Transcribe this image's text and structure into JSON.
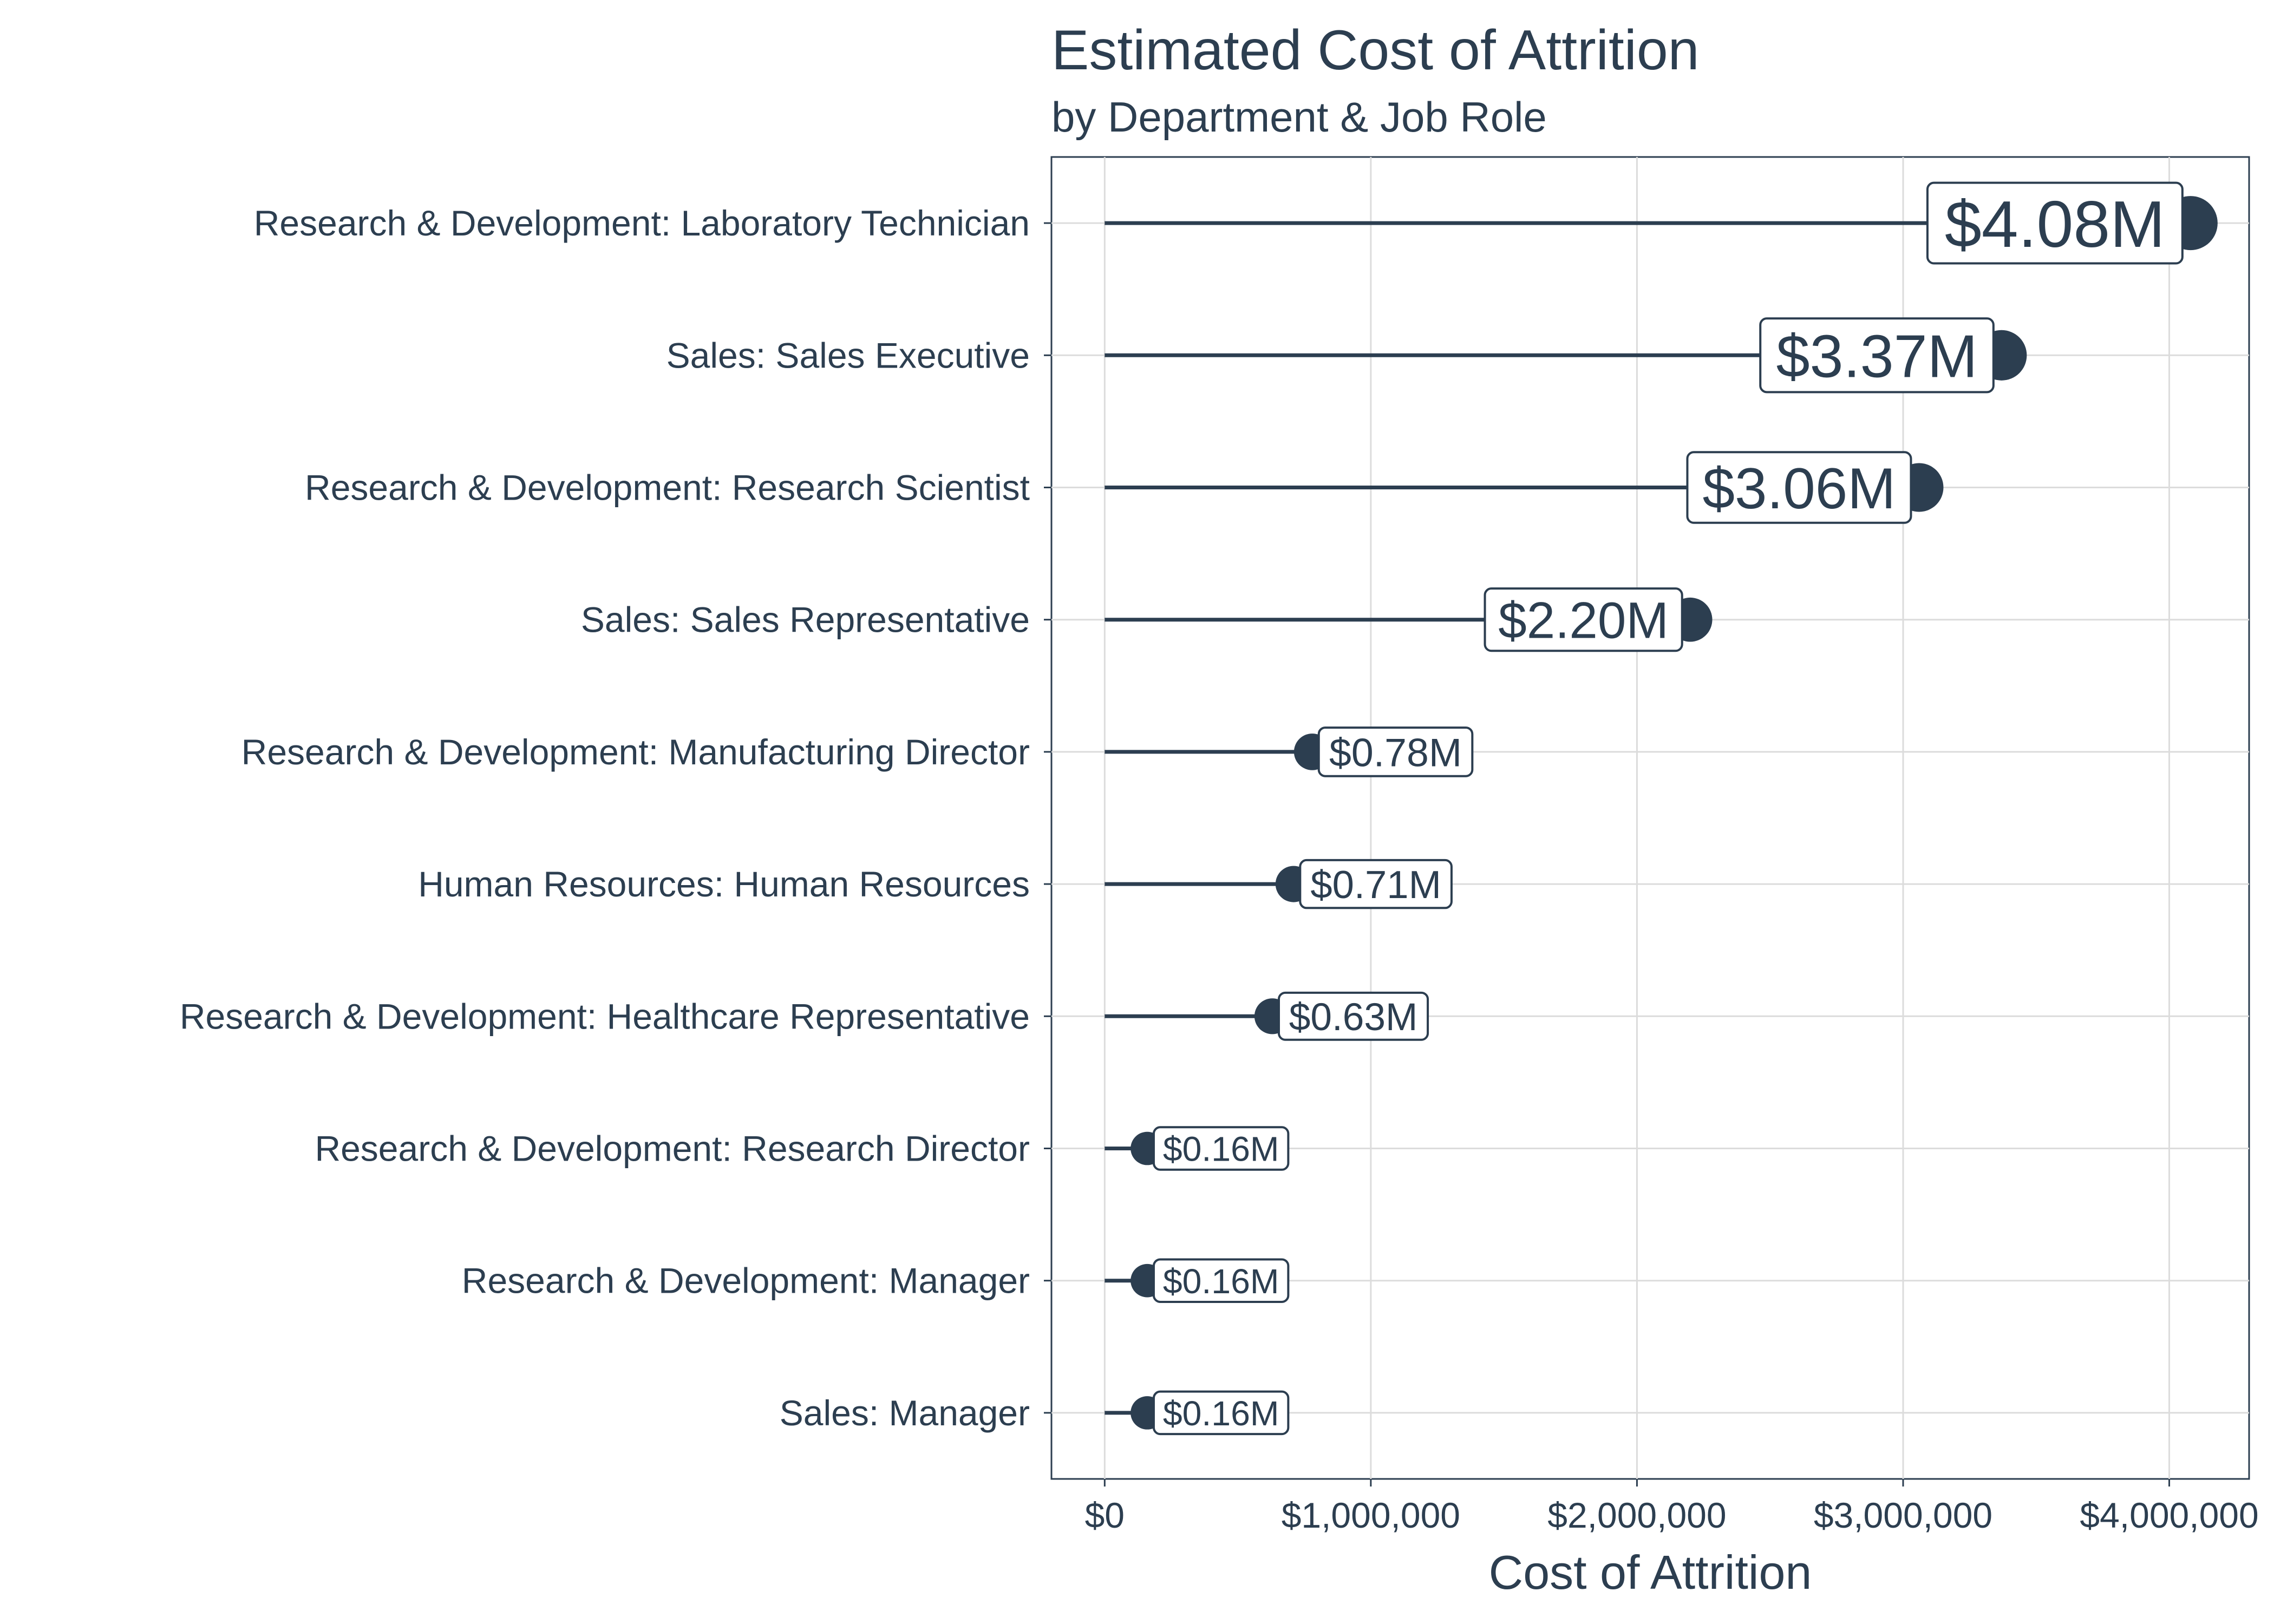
{
  "chart_data": {
    "type": "lollipop",
    "orientation": "horizontal",
    "title": "Estimated Cost of Attrition",
    "subtitle": "by Department & Job Role",
    "xlabel": "Cost of Attrition",
    "ylabel": "",
    "xlim": [
      -200000,
      4300000
    ],
    "xticks": [
      0,
      1000000,
      2000000,
      3000000,
      4000000
    ],
    "xtick_labels": [
      "$0",
      "$1,000,000",
      "$2,000,000",
      "$3,000,000",
      "$4,000,000"
    ],
    "grid": true,
    "legend": "none",
    "categories": [
      "Research & Development: Laboratory Technician",
      "Sales: Sales Executive",
      "Research & Development: Research Scientist",
      "Sales: Sales Representative",
      "Research & Development: Manufacturing Director",
      "Human Resources: Human Resources",
      "Research & Development: Healthcare Representative",
      "Research & Development: Research Director",
      "Research & Development: Manager",
      "Sales: Manager"
    ],
    "values": [
      4080000,
      3370000,
      3060000,
      2200000,
      780000,
      710000,
      630000,
      160000,
      160000,
      160000
    ],
    "data_labels": [
      "$4.08M",
      "$3.37M",
      "$3.06M",
      "$2.20M",
      "$0.78M",
      "$0.71M",
      "$0.63M",
      "$0.16M",
      "$0.16M",
      "$0.16M"
    ]
  },
  "colors": {
    "primary": "#2c3e50",
    "grid": "#dcdcdc",
    "background": "#ffffff"
  }
}
